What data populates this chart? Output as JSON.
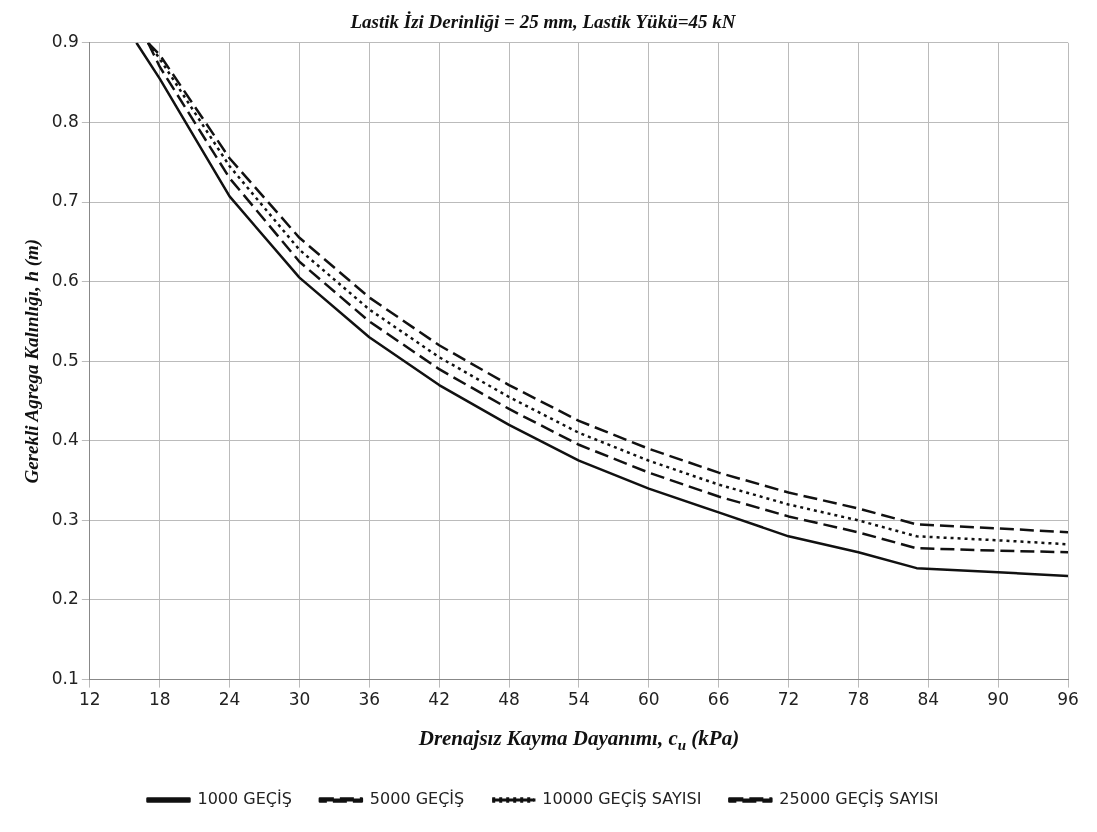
{
  "chart_data": {
    "type": "line",
    "title": "Lastik İzi Derinliği = 25 mm, Lastik Yükü=45 kN",
    "xlabel": "Drenajsız Kayma Dayanımı, c$_{u}$ (kPa)",
    "ylabel": "Gerekli Agrega Kalınlığı, h (m)",
    "xlim": [
      12,
      96
    ],
    "xticks": [
      12,
      18,
      24,
      30,
      36,
      42,
      48,
      54,
      60,
      66,
      72,
      78,
      84,
      90,
      96
    ],
    "ylim": [
      0.1,
      0.9
    ],
    "yticks": [
      0.1,
      0.2,
      0.3,
      0.4,
      0.5,
      0.6,
      0.7,
      0.8,
      0.9
    ],
    "grid": true,
    "legend": "bottom",
    "marker": "none",
    "series": [
      {
        "name": "1000 GEÇİŞ",
        "color": "#111111",
        "line_style": "solid",
        "x": [
          16,
          18,
          24,
          30,
          36,
          42,
          48,
          54,
          60,
          66,
          72,
          78,
          83,
          90,
          96
        ],
        "values": [
          0.9,
          0.855,
          0.707,
          0.605,
          0.53,
          0.47,
          0.42,
          0.375,
          0.34,
          0.31,
          0.28,
          0.26,
          0.24,
          0.235,
          0.23
        ]
      },
      {
        "name": "5000 GEÇİŞ",
        "color": "#111111",
        "line_style": "dashed",
        "x": [
          17,
          18,
          24,
          30,
          36,
          42,
          48,
          54,
          60,
          66,
          72,
          78,
          83,
          90,
          96
        ],
        "values": [
          0.9,
          0.87,
          0.73,
          0.625,
          0.55,
          0.49,
          0.44,
          0.395,
          0.36,
          0.33,
          0.305,
          0.285,
          0.265,
          0.262,
          0.26
        ]
      },
      {
        "name": "10000 GEÇİŞ SAYISI",
        "color": "#111111",
        "line_style": "dotted",
        "x": [
          17,
          18,
          24,
          30,
          36,
          42,
          48,
          54,
          60,
          66,
          72,
          78,
          83,
          90,
          96
        ],
        "values": [
          0.9,
          0.88,
          0.745,
          0.64,
          0.565,
          0.505,
          0.455,
          0.41,
          0.375,
          0.345,
          0.32,
          0.3,
          0.28,
          0.275,
          0.27
        ]
      },
      {
        "name": "25000 GEÇİŞ SAYISI",
        "color": "#111111",
        "line_style": "dashed",
        "x": [
          17,
          18,
          24,
          30,
          36,
          42,
          48,
          54,
          60,
          66,
          72,
          78,
          83,
          90,
          96
        ],
        "values": [
          0.9,
          0.885,
          0.755,
          0.655,
          0.58,
          0.52,
          0.47,
          0.425,
          0.39,
          0.36,
          0.335,
          0.315,
          0.295,
          0.29,
          0.285
        ]
      }
    ]
  }
}
